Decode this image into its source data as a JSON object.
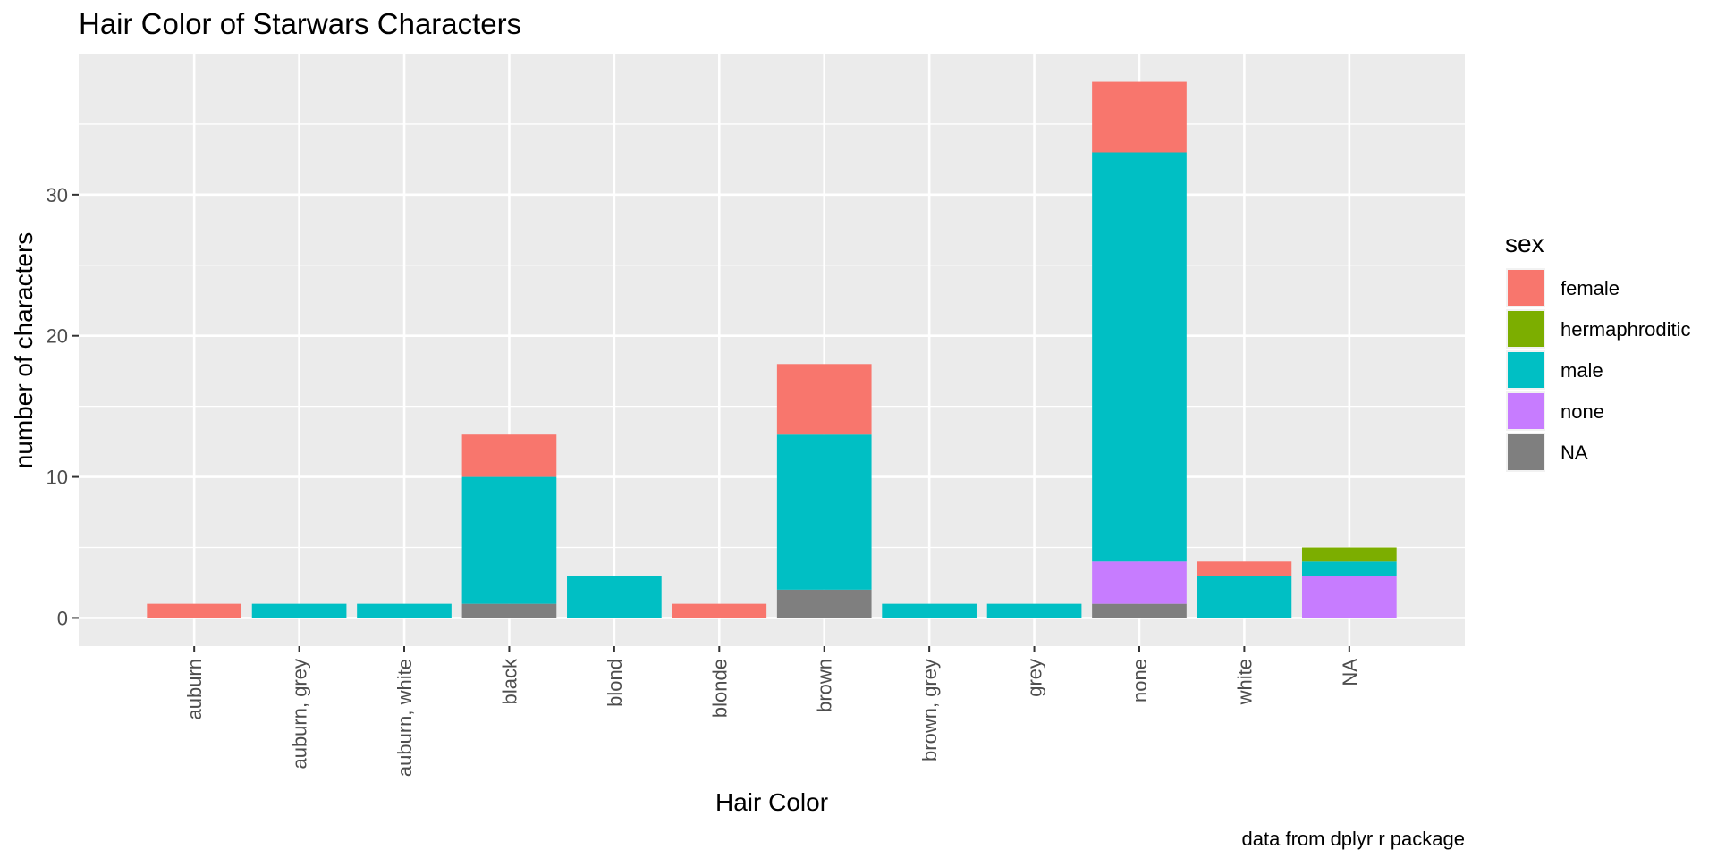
{
  "chart_data": {
    "type": "bar",
    "stacked": true,
    "title": "Hair Color of Starwars Characters",
    "xlabel": "Hair Color",
    "ylabel": "number of characters",
    "caption": "data from dplyr r package",
    "ylim": [
      -2,
      40
    ],
    "yticks": [
      0,
      10,
      20,
      30
    ],
    "grid": true,
    "legend": {
      "title": "sex",
      "position": "right"
    },
    "categories": [
      "auburn",
      "auburn, grey",
      "auburn, white",
      "black",
      "blond",
      "blonde",
      "brown",
      "brown, grey",
      "grey",
      "none",
      "white",
      "NA"
    ],
    "stack_order": [
      "NA",
      "none",
      "male",
      "hermaphroditic",
      "female"
    ],
    "series": [
      {
        "name": "female",
        "color": "#F8766D",
        "values": [
          1,
          0,
          0,
          3,
          0,
          1,
          5,
          0,
          0,
          5,
          1,
          0
        ]
      },
      {
        "name": "hermaphroditic",
        "color": "#7CAE00",
        "values": [
          0,
          0,
          0,
          0,
          0,
          0,
          0,
          0,
          0,
          0,
          0,
          1
        ]
      },
      {
        "name": "male",
        "color": "#00BFC4",
        "values": [
          0,
          1,
          1,
          9,
          3,
          0,
          11,
          1,
          1,
          29,
          3,
          1
        ]
      },
      {
        "name": "none",
        "color": "#C77CFF",
        "values": [
          0,
          0,
          0,
          0,
          0,
          0,
          0,
          0,
          0,
          3,
          0,
          3
        ]
      },
      {
        "name": "NA",
        "color": "#7F7F7F",
        "values": [
          0,
          0,
          0,
          1,
          0,
          0,
          2,
          0,
          0,
          1,
          0,
          0
        ]
      }
    ]
  }
}
